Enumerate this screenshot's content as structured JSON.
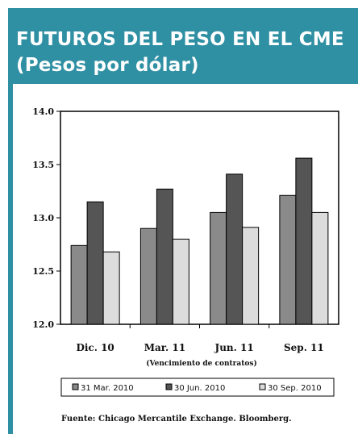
{
  "header": {
    "title_line1": "FUTUROS DEL PESO EN EL CME",
    "title_line2": "(Pesos por dólar)"
  },
  "colors": {
    "header_bg": "#2f8fa3",
    "series": [
      "#8a8a8a",
      "#555555",
      "#dcdcdc"
    ]
  },
  "chart_data": {
    "type": "bar",
    "title": "FUTUROS DEL PESO EN EL CME",
    "subtitle": "(Pesos por dólar)",
    "categories": [
      "Dic. 10",
      "Mar. 11",
      "Jun. 11",
      "Sep. 11"
    ],
    "xlabel": "(Vencimiento de contratos)",
    "ylabel": "",
    "ylim": [
      12.0,
      14.0
    ],
    "yticks": [
      "12.0",
      "12.5",
      "13.0",
      "13.5",
      "14.0"
    ],
    "grid": false,
    "legend_position": "bottom",
    "series": [
      {
        "name": "31 Mar. 2010",
        "values": [
          12.74,
          12.9,
          13.05,
          13.21
        ]
      },
      {
        "name": "30 Jun. 2010",
        "values": [
          13.15,
          13.27,
          13.41,
          13.56
        ]
      },
      {
        "name": "30 Sep. 2010",
        "values": [
          12.68,
          12.8,
          12.91,
          13.05
        ]
      }
    ]
  },
  "footer": {
    "source": "Fuente: Chicago Mercantile Exchange. Bloomberg."
  }
}
